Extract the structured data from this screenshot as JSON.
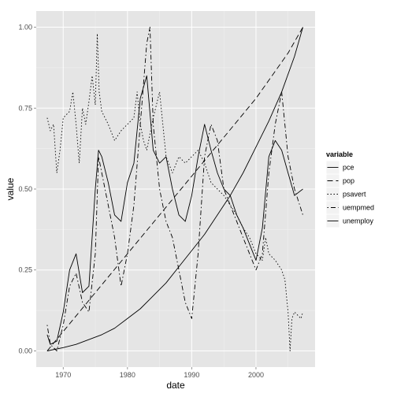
{
  "chart_data": {
    "type": "line",
    "title": "",
    "xlabel": "date",
    "ylabel": "value",
    "xlim": [
      1965.8,
      2009.2
    ],
    "ylim": [
      -0.05,
      1.05
    ],
    "x_ticks": [
      1970,
      1980,
      1990,
      2000
    ],
    "x_tick_labels": [
      "1970",
      "1980",
      "1990",
      "2000"
    ],
    "y_ticks": [
      0,
      0.25,
      0.5,
      0.75,
      1
    ],
    "y_tick_labels": [
      "0.00",
      "0.25",
      "0.50",
      "0.75",
      "1.00"
    ],
    "grid": true,
    "legend": {
      "title": "variable",
      "position": "right",
      "entries": [
        "pce",
        "pop",
        "psavert",
        "uempmed",
        "unemploy"
      ]
    },
    "series": [
      {
        "name": "pce",
        "dash": "solid",
        "x": [
          1967.5,
          1970,
          1972,
          1974,
          1976,
          1978,
          1980,
          1982,
          1984,
          1986,
          1988,
          1990,
          1992,
          1994,
          1996,
          1998,
          2000,
          2002,
          2004,
          2006,
          2007.3
        ],
        "y": [
          0.0,
          0.01,
          0.02,
          0.035,
          0.05,
          0.07,
          0.1,
          0.13,
          0.17,
          0.21,
          0.26,
          0.31,
          0.36,
          0.42,
          0.48,
          0.55,
          0.63,
          0.71,
          0.8,
          0.91,
          1.0
        ]
      },
      {
        "name": "pop",
        "dash": "longdash",
        "x": [
          1967.5,
          1970,
          1975,
          1980,
          1985,
          1990,
          1995,
          2000,
          2005,
          2007.3
        ],
        "y": [
          0.0,
          0.06,
          0.18,
          0.3,
          0.42,
          0.54,
          0.66,
          0.78,
          0.92,
          1.0
        ]
      },
      {
        "name": "psavert",
        "dash": "dotted",
        "x": [
          1967.5,
          1968,
          1968.5,
          1969,
          1969.5,
          1970,
          1971,
          1971.5,
          1972,
          1972.5,
          1973,
          1973.5,
          1974,
          1974.5,
          1975,
          1975.3,
          1975.6,
          1976,
          1977,
          1978,
          1979,
          1980,
          1981,
          1981.5,
          1982,
          1982.5,
          1983,
          1984,
          1985,
          1986,
          1987,
          1988,
          1989,
          1990,
          1991,
          1992,
          1993,
          1994,
          1995,
          1996,
          1997,
          1998,
          1999,
          2000,
          2001,
          2001.5,
          2002,
          2003,
          2004,
          2004.5,
          2005,
          2005.3,
          2005.6,
          2006,
          2007,
          2007.3
        ],
        "y": [
          0.72,
          0.68,
          0.7,
          0.55,
          0.62,
          0.72,
          0.74,
          0.8,
          0.7,
          0.58,
          0.75,
          0.7,
          0.77,
          0.85,
          0.76,
          0.98,
          0.8,
          0.74,
          0.7,
          0.65,
          0.68,
          0.7,
          0.72,
          0.8,
          0.7,
          0.65,
          0.62,
          0.72,
          0.8,
          0.6,
          0.55,
          0.6,
          0.58,
          0.6,
          0.62,
          0.58,
          0.52,
          0.5,
          0.48,
          0.45,
          0.42,
          0.38,
          0.35,
          0.3,
          0.28,
          0.35,
          0.3,
          0.28,
          0.25,
          0.22,
          0.12,
          0.0,
          0.1,
          0.12,
          0.1,
          0.12
        ]
      },
      {
        "name": "uempmed",
        "dash": "dotdash",
        "x": [
          1967.5,
          1968,
          1969,
          1970,
          1971,
          1972,
          1973,
          1974,
          1975,
          1975.5,
          1976,
          1977,
          1978,
          1979,
          1980,
          1981,
          1982,
          1983,
          1983.5,
          1984,
          1985,
          1986,
          1987,
          1988,
          1989,
          1990,
          1991,
          1992,
          1993,
          1994,
          1995,
          1996,
          1997,
          1998,
          1999,
          2000,
          2001,
          2002,
          2003,
          2004,
          2005,
          2006,
          2007.3
        ],
        "y": [
          0.08,
          0.02,
          0.0,
          0.08,
          0.2,
          0.24,
          0.15,
          0.12,
          0.3,
          0.6,
          0.55,
          0.45,
          0.35,
          0.2,
          0.3,
          0.45,
          0.7,
          0.95,
          1.0,
          0.7,
          0.5,
          0.4,
          0.35,
          0.25,
          0.15,
          0.1,
          0.3,
          0.6,
          0.7,
          0.65,
          0.5,
          0.45,
          0.4,
          0.35,
          0.3,
          0.25,
          0.3,
          0.55,
          0.7,
          0.8,
          0.6,
          0.5,
          0.42
        ]
      },
      {
        "name": "unemploy",
        "dash": "solid",
        "x": [
          1967.5,
          1968,
          1969,
          1970,
          1971,
          1972,
          1973,
          1974,
          1975,
          1975.5,
          1976,
          1977,
          1978,
          1979,
          1980,
          1981,
          1982,
          1983,
          1984,
          1985,
          1986,
          1987,
          1988,
          1989,
          1990,
          1991,
          1992,
          1993,
          1994,
          1995,
          1996,
          1997,
          1998,
          1999,
          2000,
          2001,
          2002,
          2003,
          2004,
          2005,
          2006,
          2007.3
        ],
        "y": [
          0.05,
          0.02,
          0.03,
          0.12,
          0.25,
          0.3,
          0.18,
          0.2,
          0.5,
          0.62,
          0.6,
          0.52,
          0.42,
          0.4,
          0.52,
          0.58,
          0.78,
          0.85,
          0.62,
          0.58,
          0.6,
          0.5,
          0.42,
          0.4,
          0.48,
          0.6,
          0.7,
          0.62,
          0.55,
          0.5,
          0.48,
          0.42,
          0.38,
          0.33,
          0.28,
          0.38,
          0.6,
          0.65,
          0.62,
          0.55,
          0.48,
          0.5
        ]
      }
    ]
  }
}
